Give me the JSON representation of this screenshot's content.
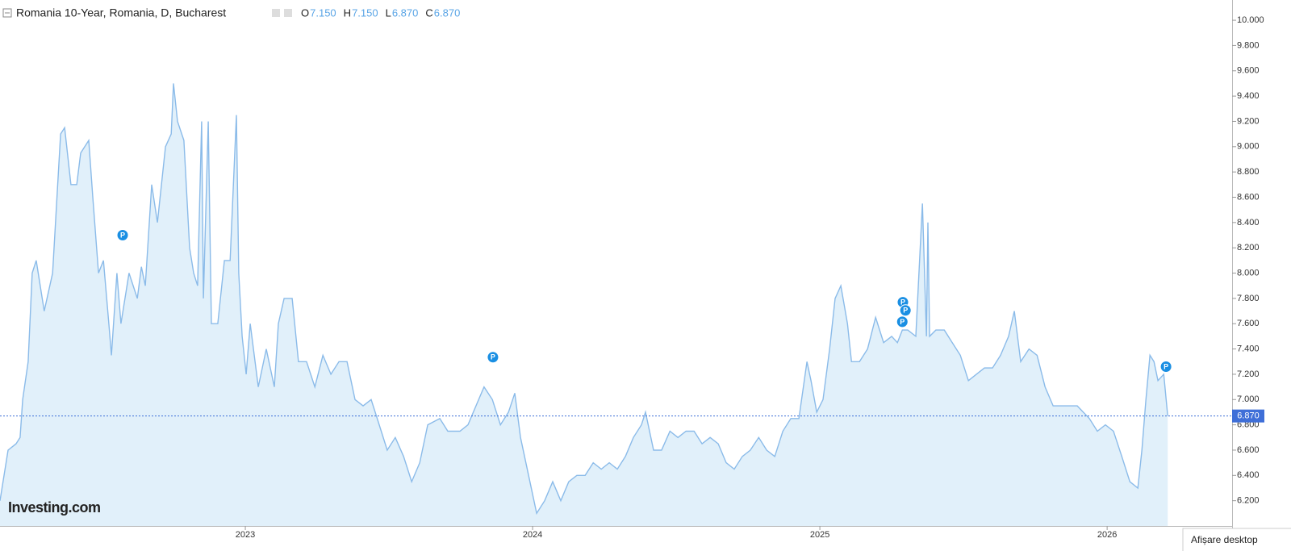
{
  "chart_data": {
    "type": "area",
    "title": "Romania 10-Year, Romania, D, Bucharest",
    "ohlc": [
      {
        "name": "O",
        "text": "7.150"
      },
      {
        "name": "H",
        "text": "7.150"
      },
      {
        "name": "L",
        "text": "6.870"
      },
      {
        "name": "C",
        "text": "6.870"
      }
    ],
    "logo": "Investing.com",
    "footer_button": "Afișare desktop",
    "last": {
      "value": 6.87,
      "label": "6.870"
    },
    "x": [
      2022.146,
      2022.174,
      2022.202,
      2022.216,
      2022.225,
      2022.244,
      2022.258,
      2022.272,
      2022.3,
      2022.329,
      2022.357,
      2022.371,
      2022.393,
      2022.413,
      2022.427,
      2022.455,
      2022.469,
      2022.489,
      2022.506,
      2022.525,
      2022.534,
      2022.553,
      2022.567,
      2022.595,
      2022.624,
      2022.638,
      2022.652,
      2022.674,
      2022.694,
      2022.722,
      2022.742,
      2022.75,
      2022.764,
      2022.786,
      2022.806,
      2022.82,
      2022.834,
      2022.848,
      2022.854,
      2022.871,
      2022.882,
      2022.904,
      2022.927,
      2022.947,
      2022.969,
      2022.977,
      2022.989,
      2023.003,
      2023.017,
      2023.045,
      2023.073,
      2023.101,
      2023.115,
      2023.135,
      2023.163,
      2023.185,
      2023.213,
      2023.242,
      2023.27,
      2023.298,
      2023.326,
      2023.354,
      2023.382,
      2023.41,
      2023.438,
      2023.466,
      2023.494,
      2023.522,
      2023.551,
      2023.579,
      2023.607,
      2023.635,
      2023.677,
      2023.705,
      2023.747,
      2023.775,
      2023.803,
      2023.831,
      2023.86,
      2023.888,
      2023.916,
      2023.938,
      2023.958,
      2023.986,
      2024.014,
      2024.042,
      2024.07,
      2024.098,
      2024.126,
      2024.154,
      2024.183,
      2024.211,
      2024.239,
      2024.267,
      2024.295,
      2024.323,
      2024.351,
      2024.379,
      2024.393,
      2024.421,
      2024.449,
      2024.478,
      2024.506,
      2024.534,
      2024.562,
      2024.59,
      2024.618,
      2024.646,
      2024.674,
      2024.702,
      2024.73,
      2024.758,
      2024.787,
      2024.815,
      2024.843,
      2024.871,
      2024.899,
      2024.927,
      2024.955,
      2024.969,
      2024.989,
      2025.011,
      2025.034,
      2025.053,
      2025.073,
      2025.096,
      2025.11,
      2025.138,
      2025.166,
      2025.194,
      2025.222,
      2025.25,
      2025.27,
      2025.287,
      2025.306,
      2025.334,
      2025.357,
      2025.371,
      2025.376,
      2025.382,
      2025.404,
      2025.433,
      2025.461,
      2025.489,
      2025.517,
      2025.545,
      2025.573,
      2025.601,
      2025.629,
      2025.657,
      2025.677,
      2025.699,
      2025.728,
      2025.756,
      2025.784,
      2025.812,
      2025.854,
      2025.896,
      2025.938,
      2025.966,
      2025.994,
      2026.022,
      2026.051,
      2026.079,
      2026.107,
      2026.121,
      2026.135,
      2026.149,
      2026.163,
      2026.177,
      2026.197,
      2026.211
    ],
    "series": [
      {
        "name": "Romania 10-Year",
        "color": "#8bbbe9",
        "fill": "#e1f0fa",
        "values": [
          6.2,
          6.6,
          6.65,
          6.7,
          7.0,
          7.3,
          8.0,
          8.1,
          7.7,
          8.0,
          9.1,
          9.15,
          8.7,
          8.7,
          8.95,
          9.05,
          8.6,
          8.0,
          8.1,
          7.6,
          7.35,
          8.0,
          7.6,
          8.0,
          7.8,
          8.05,
          7.9,
          8.7,
          8.4,
          9.0,
          9.1,
          9.5,
          9.2,
          9.05,
          8.2,
          8.0,
          7.9,
          9.2,
          7.8,
          9.2,
          7.6,
          7.6,
          8.1,
          8.1,
          9.25,
          8.0,
          7.5,
          7.2,
          7.6,
          7.1,
          7.4,
          7.1,
          7.6,
          7.8,
          7.8,
          7.3,
          7.3,
          7.1,
          7.35,
          7.2,
          7.3,
          7.3,
          7.0,
          6.95,
          7.0,
          6.8,
          6.6,
          6.7,
          6.55,
          6.35,
          6.5,
          6.8,
          6.85,
          6.75,
          6.75,
          6.8,
          6.95,
          7.1,
          7.0,
          6.8,
          6.9,
          7.05,
          6.7,
          6.4,
          6.1,
          6.2,
          6.35,
          6.2,
          6.35,
          6.4,
          6.4,
          6.5,
          6.45,
          6.5,
          6.45,
          6.55,
          6.7,
          6.8,
          6.9,
          6.6,
          6.6,
          6.75,
          6.7,
          6.75,
          6.75,
          6.65,
          6.7,
          6.65,
          6.5,
          6.45,
          6.55,
          6.6,
          6.7,
          6.6,
          6.55,
          6.75,
          6.85,
          6.85,
          7.3,
          7.15,
          6.9,
          7.0,
          7.4,
          7.8,
          7.9,
          7.6,
          7.3,
          7.3,
          7.4,
          7.65,
          7.45,
          7.5,
          7.45,
          7.55,
          7.55,
          7.5,
          8.55,
          7.5,
          8.4,
          7.5,
          7.55,
          7.55,
          7.45,
          7.35,
          7.15,
          7.2,
          7.25,
          7.25,
          7.35,
          7.5,
          7.7,
          7.3,
          7.4,
          7.35,
          7.1,
          6.95,
          6.95,
          6.95,
          6.85,
          6.75,
          6.8,
          6.75,
          6.55,
          6.35,
          6.3,
          6.6,
          7.0,
          7.35,
          7.3,
          7.15,
          7.2,
          6.87
        ]
      }
    ],
    "annotations": [
      {
        "x": 2022.573,
        "y": 8.3,
        "label": "P"
      },
      {
        "x": 2023.862,
        "y": 7.335,
        "label": "P"
      },
      {
        "x": 2025.289,
        "y": 7.77,
        "label": "P"
      },
      {
        "x": 2025.298,
        "y": 7.705,
        "label": "P"
      },
      {
        "x": 2025.287,
        "y": 7.615,
        "label": "P"
      },
      {
        "x": 2026.205,
        "y": 7.26,
        "label": "P"
      }
    ],
    "xlim": [
      2022.146,
      2026.435
    ],
    "xticks": [
      2023,
      2024,
      2025,
      2026
    ],
    "ylim": [
      6.0,
      10.16
    ],
    "yticks": [
      {
        "value": 6.2,
        "label": "6.200"
      },
      {
        "value": 6.4,
        "label": "6.400"
      },
      {
        "value": 6.6,
        "label": "6.600"
      },
      {
        "value": 6.8,
        "label": "6.800"
      },
      {
        "value": 7.0,
        "label": "7.000"
      },
      {
        "value": 7.2,
        "label": "7.200"
      },
      {
        "value": 7.4,
        "label": "7.400"
      },
      {
        "value": 7.6,
        "label": "7.600"
      },
      {
        "value": 7.8,
        "label": "7.800"
      },
      {
        "value": 8.0,
        "label": "8.000"
      },
      {
        "value": 8.2,
        "label": "8.200"
      },
      {
        "value": 8.4,
        "label": "8.400"
      },
      {
        "value": 8.6,
        "label": "8.600"
      },
      {
        "value": 8.8,
        "label": "8.800"
      },
      {
        "value": 9.0,
        "label": "9.000"
      },
      {
        "value": 9.2,
        "label": "9.200"
      },
      {
        "value": 9.4,
        "label": "9.400"
      },
      {
        "value": 9.6,
        "label": "9.600"
      },
      {
        "value": 9.8,
        "label": "9.800"
      },
      {
        "value": 10.0,
        "label": "10.000"
      }
    ]
  }
}
